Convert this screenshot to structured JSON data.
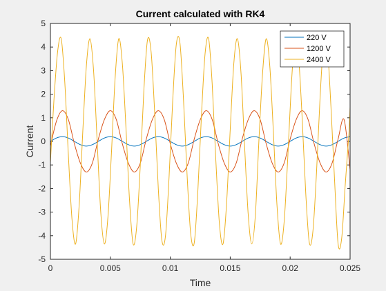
{
  "colors": {
    "figure_background": "#f0f0f0",
    "axes_background": "#ffffff",
    "axis_line": "#262626"
  },
  "chart_data": {
    "type": "line",
    "title": "Current calculated with RK4",
    "xlabel": "Time",
    "ylabel": "Current",
    "xlim": [
      0,
      0.025
    ],
    "ylim": [
      -5,
      5
    ],
    "grid": false,
    "legend_position": "top-right",
    "x_ticks": [
      0,
      0.005,
      0.01,
      0.015,
      0.02,
      0.025
    ],
    "x_tick_labels": [
      "0",
      "0.005",
      "0.01",
      "0.015",
      "0.02",
      "0.025"
    ],
    "y_ticks": [
      -5,
      -4,
      -3,
      -2,
      -1,
      0,
      1,
      2,
      3,
      4,
      5
    ],
    "y_tick_labels": [
      "-5",
      "-4",
      "-3",
      "-2",
      "-1",
      "0",
      "1",
      "2",
      "3",
      "4",
      "5"
    ],
    "series": [
      {
        "name": "220 V",
        "color": "#0072bd",
        "x": [
          0,
          0.0005,
          0.001,
          0.0015,
          0.002,
          0.0025,
          0.003,
          0.0035,
          0.004,
          0.0045,
          0.005,
          0.0055,
          0.006,
          0.0065,
          0.007,
          0.0075,
          0.008,
          0.0085,
          0.009,
          0.0095,
          0.01,
          0.0105,
          0.011,
          0.0115,
          0.012,
          0.0125,
          0.013,
          0.0135,
          0.014,
          0.0145,
          0.015,
          0.0155,
          0.016,
          0.0165,
          0.017,
          0.0175,
          0.018,
          0.0185,
          0.019,
          0.0195,
          0.02,
          0.0205,
          0.021,
          0.0215,
          0.022,
          0.0225,
          0.023,
          0.0235,
          0.024,
          0.0245,
          0.025
        ],
        "y": [
          0,
          0.14,
          0.2,
          0.14,
          0,
          -0.14,
          -0.2,
          -0.14,
          0,
          0.14,
          0.2,
          0.14,
          0,
          -0.14,
          -0.2,
          -0.14,
          0,
          0.14,
          0.2,
          0.14,
          0,
          -0.14,
          -0.2,
          -0.14,
          0,
          0.14,
          0.2,
          0.14,
          0,
          -0.14,
          -0.2,
          -0.14,
          0,
          0.14,
          0.2,
          0.14,
          0,
          -0.14,
          -0.2,
          -0.14,
          0,
          0.14,
          0.2,
          0.14,
          0,
          -0.14,
          -0.2,
          -0.14,
          0,
          0.14,
          0.2
        ]
      },
      {
        "name": "1200 V",
        "color": "#d95319",
        "x": [
          0,
          0.0005,
          0.001,
          0.0015,
          0.002,
          0.0025,
          0.003,
          0.0035,
          0.004,
          0.0045,
          0.005,
          0.0055,
          0.006,
          0.0065,
          0.007,
          0.0075,
          0.008,
          0.0085,
          0.009,
          0.0095,
          0.01,
          0.0105,
          0.011,
          0.0115,
          0.012,
          0.0125,
          0.013,
          0.0135,
          0.014,
          0.0145,
          0.015,
          0.0155,
          0.016,
          0.0165,
          0.017,
          0.0175,
          0.018,
          0.0185,
          0.019,
          0.0195,
          0.02,
          0.0205,
          0.021,
          0.0215,
          0.022,
          0.0225,
          0.023,
          0.0235,
          0.024,
          0.0245,
          0.025
        ],
        "y": [
          -0.2,
          0.85,
          1.3,
          0.92,
          -0.1,
          -0.92,
          -1.3,
          -0.92,
          0.1,
          0.92,
          1.3,
          0.92,
          -0.1,
          -0.92,
          -1.3,
          -0.92,
          0.1,
          0.92,
          1.3,
          0.92,
          -0.1,
          -0.92,
          -1.3,
          -0.92,
          0.1,
          0.92,
          1.3,
          0.92,
          -0.1,
          -0.92,
          -1.3,
          -0.92,
          0.1,
          0.92,
          1.3,
          0.92,
          -0.1,
          -0.92,
          -1.3,
          -0.92,
          0.1,
          0.92,
          1.3,
          0.92,
          -0.1,
          -0.92,
          -1.3,
          -0.92,
          0.1,
          0.92,
          -1.2
        ]
      },
      {
        "name": "2400 V",
        "color": "#edb120",
        "x": [
          0,
          0.0003,
          0.0006,
          0.0009,
          0.0012,
          0.0015,
          0.0018,
          0.0021,
          0.0024,
          0.0027,
          0.003,
          0.0033,
          0.0036,
          0.0039,
          0.0042,
          0.0045,
          0.0048,
          0.0051,
          0.0054,
          0.0057,
          0.006,
          0.0063,
          0.0066,
          0.0069,
          0.0072,
          0.0075,
          0.0078,
          0.0081,
          0.0084,
          0.0087,
          0.009,
          0.0093,
          0.0096,
          0.0099,
          0.0102,
          0.0105,
          0.0108,
          0.0111,
          0.0114,
          0.0117,
          0.012,
          0.0123,
          0.0126,
          0.0129,
          0.0132,
          0.0135,
          0.0138,
          0.0141,
          0.0144,
          0.0147,
          0.015,
          0.0153,
          0.0156,
          0.0159,
          0.0162,
          0.0165,
          0.0168,
          0.0171,
          0.0174,
          0.0177,
          0.018,
          0.0183,
          0.0186,
          0.0189,
          0.0192,
          0.0195,
          0.0198,
          0.0201,
          0.0204,
          0.0207,
          0.021,
          0.0213,
          0.0216,
          0.0219,
          0.0222,
          0.0225,
          0.0228,
          0.0231,
          0.0234,
          0.0237,
          0.024,
          0.0243,
          0.0246,
          0.0249,
          0.025
        ],
        "y": [
          -0.9,
          1.8,
          3.8,
          4.35,
          2.5,
          -0.6,
          -3.3,
          -4.35,
          -2.7,
          0.4,
          3.2,
          4.35,
          3.0,
          0.0,
          -3.0,
          -4.35,
          -3.2,
          -0.4,
          2.7,
          4.35,
          3.3,
          0.6,
          -2.5,
          -4.35,
          -3.6,
          -1.0,
          2.2,
          4.3,
          3.8,
          1.2,
          -2.0,
          -4.2,
          -4.0,
          -1.5,
          1.7,
          4.1,
          4.2,
          1.8,
          -1.4,
          -3.9,
          -4.3,
          -2.1,
          1.1,
          3.7,
          4.35,
          2.4,
          -0.8,
          -3.5,
          -4.35,
          -2.6,
          0.5,
          3.3,
          4.35,
          2.9,
          -0.2,
          -3.1,
          -4.35,
          -3.1,
          0.1,
          2.9,
          4.35,
          3.2,
          0.4,
          -2.7,
          -4.35,
          -3.4,
          -0.7,
          2.4,
          4.35,
          3.6,
          1.0,
          -2.2,
          -4.3,
          -3.8,
          -1.3,
          1.9,
          4.2,
          4.0,
          1.5,
          -1.6,
          -4.35,
          -4.1,
          -1.8,
          0.3,
          1.45
        ]
      }
    ]
  }
}
